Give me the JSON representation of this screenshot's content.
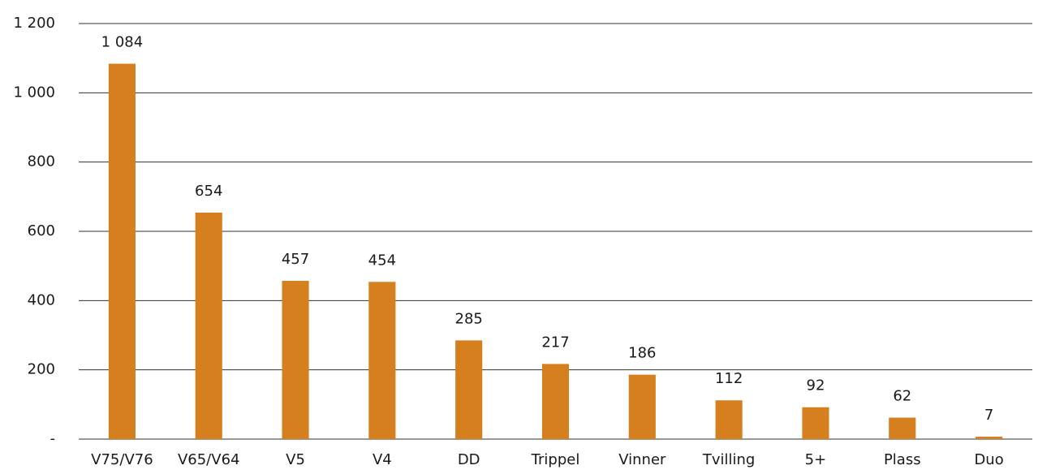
{
  "chart_data": {
    "type": "bar",
    "categories": [
      "V75/V76",
      "V65/V64",
      "V5",
      "V4",
      "DD",
      "Trippel",
      "Vinner",
      "Tvilling",
      "5+",
      "Plass",
      "Duo"
    ],
    "values": [
      1084,
      654,
      457,
      454,
      285,
      217,
      186,
      112,
      92,
      62,
      7
    ],
    "value_labels": [
      "1 084",
      "654",
      "457",
      "454",
      "285",
      "217",
      "186",
      "112",
      "92",
      "62",
      "7"
    ],
    "color": "#d67f1f",
    "ylim": [
      0,
      1200
    ],
    "yticks": [
      {
        "value": 0,
        "label": "-"
      },
      200,
      400,
      600,
      800,
      {
        "value": 1000,
        "label": "1 000"
      },
      {
        "value": 1200,
        "label": "1 200"
      }
    ],
    "grid": true
  }
}
